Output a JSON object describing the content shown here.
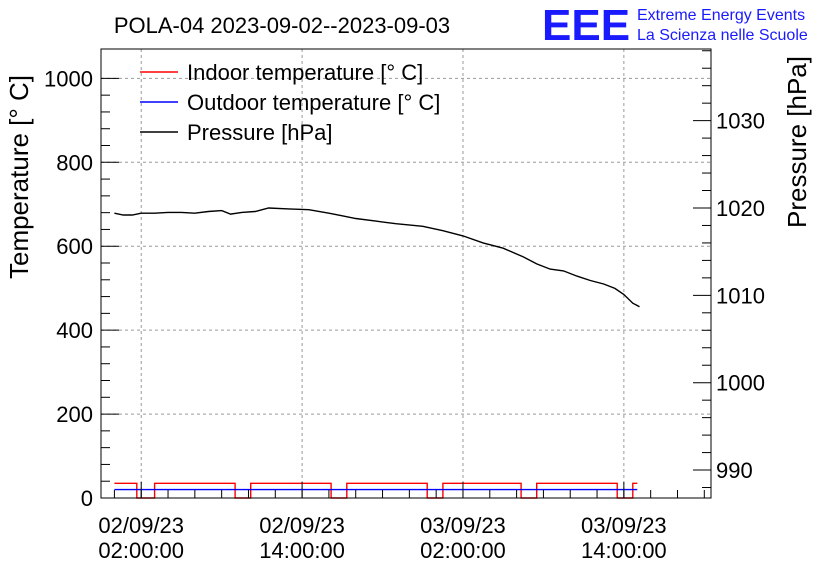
{
  "chart_data": {
    "type": "line",
    "title": "POLA-04 2023-09-02--2023-09-03",
    "ylabel": "Temperature [° C]",
    "y2label": "Pressure [hPa]",
    "ylim": [
      0,
      1070
    ],
    "y2lim": [
      986.8,
      1038.2
    ],
    "xlim": [
      "2023-09-01T23:00:00",
      "2023-09-03T20:30:00"
    ],
    "yticks": [
      0,
      200,
      400,
      600,
      800,
      1000
    ],
    "y2ticks": [
      990,
      1000,
      1010,
      1020,
      1030
    ],
    "xticks": [
      {
        "at": "2023-09-02T02:00:00",
        "date": "02/09/23",
        "time": "02:00:00"
      },
      {
        "at": "2023-09-02T14:00:00",
        "date": "02/09/23",
        "time": "14:00:00"
      },
      {
        "at": "2023-09-03T02:00:00",
        "date": "03/09/23",
        "time": "02:00:00"
      },
      {
        "at": "2023-09-03T14:00:00",
        "date": "03/09/23",
        "time": "14:00:00"
      }
    ],
    "grid": true,
    "legend_position": "top-left",
    "series": [
      {
        "name": "Indoor temperature [° C]",
        "color": "#ff0000",
        "axis": "left",
        "style": "step",
        "points": [
          [
            "2023-09-02T00:00:00",
            35
          ],
          [
            "2023-09-02T01:40:00",
            35
          ],
          [
            "2023-09-02T01:40:00",
            0
          ],
          [
            "2023-09-02T03:00:00",
            0
          ],
          [
            "2023-09-02T03:00:00",
            35
          ],
          [
            "2023-09-02T09:00:00",
            35
          ],
          [
            "2023-09-02T09:00:00",
            0
          ],
          [
            "2023-09-02T10:10:00",
            0
          ],
          [
            "2023-09-02T10:10:00",
            35
          ],
          [
            "2023-09-02T16:10:00",
            35
          ],
          [
            "2023-09-02T16:10:00",
            0
          ],
          [
            "2023-09-02T17:20:00",
            0
          ],
          [
            "2023-09-02T17:20:00",
            35
          ],
          [
            "2023-09-02T23:20:00",
            35
          ],
          [
            "2023-09-02T23:20:00",
            0
          ],
          [
            "2023-09-03T00:30:00",
            0
          ],
          [
            "2023-09-03T00:30:00",
            35
          ],
          [
            "2023-09-03T06:20:00",
            35
          ],
          [
            "2023-09-03T06:20:00",
            0
          ],
          [
            "2023-09-03T07:30:00",
            0
          ],
          [
            "2023-09-03T07:30:00",
            35
          ],
          [
            "2023-09-03T13:30:00",
            35
          ],
          [
            "2023-09-03T13:30:00",
            0
          ],
          [
            "2023-09-03T14:40:00",
            0
          ],
          [
            "2023-09-03T14:40:00",
            35
          ],
          [
            "2023-09-03T15:00:00",
            35
          ]
        ]
      },
      {
        "name": "Outdoor temperature [° C]",
        "color": "#0000ff",
        "axis": "left",
        "style": "line",
        "points": [
          [
            "2023-09-02T00:00:00",
            20
          ],
          [
            "2023-09-03T15:00:00",
            20
          ]
        ]
      },
      {
        "name": "Pressure [hPa]",
        "color": "#000000",
        "axis": "right",
        "style": "line",
        "points": [
          [
            "2023-09-02T00:00:00",
            1019.4
          ],
          [
            "2023-09-02T00:40:00",
            1019.2
          ],
          [
            "2023-09-02T01:20:00",
            1019.2
          ],
          [
            "2023-09-02T02:00:00",
            1019.4
          ],
          [
            "2023-09-02T03:00:00",
            1019.4
          ],
          [
            "2023-09-02T04:00:00",
            1019.5
          ],
          [
            "2023-09-02T05:00:00",
            1019.5
          ],
          [
            "2023-09-02T06:00:00",
            1019.4
          ],
          [
            "2023-09-02T07:00:00",
            1019.6
          ],
          [
            "2023-09-02T08:00:00",
            1019.7
          ],
          [
            "2023-09-02T08:40:00",
            1019.3
          ],
          [
            "2023-09-02T09:30:00",
            1019.5
          ],
          [
            "2023-09-02T10:30:00",
            1019.6
          ],
          [
            "2023-09-02T11:30:00",
            1020.0
          ],
          [
            "2023-09-02T13:00:00",
            1019.9
          ],
          [
            "2023-09-02T14:30:00",
            1019.8
          ],
          [
            "2023-09-02T16:00:00",
            1019.4
          ],
          [
            "2023-09-02T17:00:00",
            1019.1
          ],
          [
            "2023-09-02T18:00:00",
            1018.8
          ],
          [
            "2023-09-02T19:30:00",
            1018.5
          ],
          [
            "2023-09-02T21:00:00",
            1018.2
          ],
          [
            "2023-09-02T23:00:00",
            1017.9
          ],
          [
            "2023-09-03T00:30:00",
            1017.4
          ],
          [
            "2023-09-03T02:00:00",
            1016.8
          ],
          [
            "2023-09-03T03:30:00",
            1016.0
          ],
          [
            "2023-09-03T05:00:00",
            1015.4
          ],
          [
            "2023-09-03T06:30:00",
            1014.4
          ],
          [
            "2023-09-03T07:30:00",
            1013.6
          ],
          [
            "2023-09-03T08:30:00",
            1013.0
          ],
          [
            "2023-09-03T09:30:00",
            1012.8
          ],
          [
            "2023-09-03T10:30:00",
            1012.2
          ],
          [
            "2023-09-03T11:30:00",
            1011.7
          ],
          [
            "2023-09-03T12:30:00",
            1011.3
          ],
          [
            "2023-09-03T13:20:00",
            1010.8
          ],
          [
            "2023-09-03T14:00:00",
            1010.1
          ],
          [
            "2023-09-03T14:40:00",
            1009.1
          ],
          [
            "2023-09-03T15:10:00",
            1008.7
          ]
        ]
      }
    ]
  },
  "logo": {
    "mark": "EEE",
    "line1": "Extreme Energy Events",
    "line2": "La Scienza nelle Scuole",
    "color": "#1a1aff"
  }
}
